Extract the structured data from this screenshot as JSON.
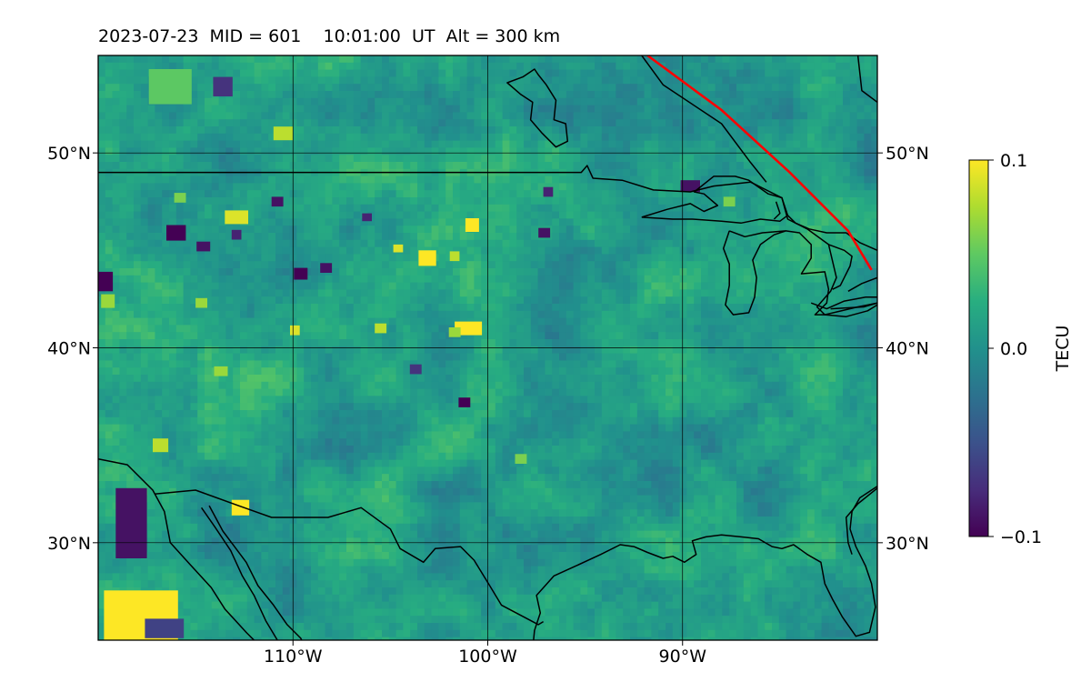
{
  "chart_data": {
    "type": "heatmap",
    "title": "2023-07-23  MID = 601    10:01:00  UT  Alt = 300 km",
    "lon_range": [
      -120,
      -80
    ],
    "lat_range": [
      25,
      55
    ],
    "x_ticks": [
      {
        "value": -110,
        "label": "110°W"
      },
      {
        "value": -100,
        "label": "100°W"
      },
      {
        "value": -90,
        "label": "90°W"
      }
    ],
    "y_ticks": [
      {
        "value": 30,
        "label": "30°N"
      },
      {
        "value": 40,
        "label": "40°N"
      },
      {
        "value": 50,
        "label": "50°N"
      }
    ],
    "grid": true,
    "colorbar": {
      "label": "TECU",
      "colormap": "viridis",
      "vmin": -0.1,
      "vmax": 0.1,
      "ticks": [
        {
          "value": 0.1,
          "label": "0.1"
        },
        {
          "value": 0.0,
          "label": "0.0"
        },
        {
          "value": -0.1,
          "label": "−0.1"
        }
      ]
    },
    "terminator_line": {
      "color": "#ff0000",
      "points": [
        [
          -91.8,
          55
        ],
        [
          -88,
          52.2
        ],
        [
          -84.5,
          49
        ],
        [
          -81.5,
          46
        ],
        [
          -80.3,
          44
        ]
      ]
    },
    "hotspots_positive": [
      {
        "lon": -117.8,
        "lat": 26.2,
        "w": 3.8,
        "h": 2.7,
        "v": 0.1
      },
      {
        "lon": -112.7,
        "lat": 31.8,
        "w": 0.9,
        "h": 0.8,
        "v": 0.1
      },
      {
        "lon": -103.1,
        "lat": 44.6,
        "w": 0.9,
        "h": 0.8,
        "v": 0.1
      },
      {
        "lon": -101.0,
        "lat": 41.0,
        "w": 1.4,
        "h": 0.7,
        "v": 0.1
      },
      {
        "lon": -100.8,
        "lat": 46.3,
        "w": 0.7,
        "h": 0.7,
        "v": 0.1
      },
      {
        "lon": -112.9,
        "lat": 46.7,
        "w": 1.2,
        "h": 0.7,
        "v": 0.09
      },
      {
        "lon": -110.5,
        "lat": 51.0,
        "w": 1.0,
        "h": 0.7,
        "v": 0.08
      },
      {
        "lon": -116.8,
        "lat": 35.0,
        "w": 0.8,
        "h": 0.7,
        "v": 0.08
      },
      {
        "lon": -109.9,
        "lat": 40.9,
        "w": 0.5,
        "h": 0.5,
        "v": 0.09
      },
      {
        "lon": -105.5,
        "lat": 41.0,
        "w": 0.6,
        "h": 0.5,
        "v": 0.08
      },
      {
        "lon": -104.6,
        "lat": 45.1,
        "w": 0.5,
        "h": 0.4,
        "v": 0.09
      },
      {
        "lon": -101.7,
        "lat": 44.7,
        "w": 0.5,
        "h": 0.5,
        "v": 0.08
      },
      {
        "lon": -114.7,
        "lat": 42.3,
        "w": 0.6,
        "h": 0.5,
        "v": 0.07
      },
      {
        "lon": -119.5,
        "lat": 42.4,
        "w": 0.7,
        "h": 0.7,
        "v": 0.07
      },
      {
        "lon": -113.7,
        "lat": 38.8,
        "w": 0.7,
        "h": 0.5,
        "v": 0.07
      },
      {
        "lon": -115.8,
        "lat": 47.7,
        "w": 0.6,
        "h": 0.5,
        "v": 0.06
      },
      {
        "lon": -87.6,
        "lat": 47.5,
        "w": 0.6,
        "h": 0.5,
        "v": 0.06
      },
      {
        "lon": -116.3,
        "lat": 53.4,
        "w": 2.2,
        "h": 1.8,
        "v": 0.05
      },
      {
        "lon": -98.3,
        "lat": 34.3,
        "w": 0.6,
        "h": 0.5,
        "v": 0.06
      },
      {
        "lon": -101.7,
        "lat": 40.8,
        "w": 0.6,
        "h": 0.5,
        "v": 0.07
      }
    ],
    "hotspots_negative": [
      {
        "lon": -119.7,
        "lat": 43.4,
        "w": 0.9,
        "h": 1.0,
        "v": -0.1
      },
      {
        "lon": -118.3,
        "lat": 31.0,
        "w": 1.6,
        "h": 3.6,
        "v": -0.09
      },
      {
        "lon": -116.0,
        "lat": 45.9,
        "w": 1.0,
        "h": 0.8,
        "v": -0.1
      },
      {
        "lon": -114.6,
        "lat": 45.2,
        "w": 0.7,
        "h": 0.5,
        "v": -0.09
      },
      {
        "lon": -109.6,
        "lat": 43.8,
        "w": 0.7,
        "h": 0.6,
        "v": -0.1
      },
      {
        "lon": -108.3,
        "lat": 44.1,
        "w": 0.6,
        "h": 0.5,
        "v": -0.09
      },
      {
        "lon": -110.8,
        "lat": 47.5,
        "w": 0.6,
        "h": 0.5,
        "v": -0.09
      },
      {
        "lon": -101.2,
        "lat": 37.2,
        "w": 0.6,
        "h": 0.5,
        "v": -0.1
      },
      {
        "lon": -89.6,
        "lat": 48.3,
        "w": 1.0,
        "h": 0.6,
        "v": -0.09
      },
      {
        "lon": -97.1,
        "lat": 45.9,
        "w": 0.6,
        "h": 0.5,
        "v": -0.09
      },
      {
        "lon": -96.9,
        "lat": 48.0,
        "w": 0.5,
        "h": 0.5,
        "v": -0.08
      },
      {
        "lon": -113.6,
        "lat": 53.4,
        "w": 1.0,
        "h": 1.0,
        "v": -0.07
      },
      {
        "lon": -112.9,
        "lat": 45.8,
        "w": 0.5,
        "h": 0.5,
        "v": -0.08
      },
      {
        "lon": -106.2,
        "lat": 46.7,
        "w": 0.5,
        "h": 0.4,
        "v": -0.08
      },
      {
        "lon": -103.7,
        "lat": 38.9,
        "w": 0.6,
        "h": 0.5,
        "v": -0.07
      },
      {
        "lon": -116.6,
        "lat": 25.6,
        "w": 2.0,
        "h": 1.0,
        "v": -0.06
      }
    ],
    "coastlines": [
      [
        [
          -120,
          34.3
        ],
        [
          -118.5,
          34.0
        ],
        [
          -117.2,
          32.7
        ],
        [
          -116.6,
          31.6
        ],
        [
          -116.3,
          30.0
        ],
        [
          -115.3,
          28.9
        ],
        [
          -114.2,
          27.7
        ],
        [
          -113.5,
          26.6
        ],
        [
          -112.4,
          25.4
        ],
        [
          -111.7,
          24.7
        ]
      ],
      [
        [
          -114.7,
          31.8
        ],
        [
          -114.0,
          30.8
        ],
        [
          -113.2,
          29.6
        ],
        [
          -112.6,
          28.3
        ],
        [
          -112.0,
          27.3
        ],
        [
          -111.4,
          26.0
        ],
        [
          -110.8,
          25.0
        ],
        [
          -110.5,
          24.2
        ]
      ],
      [
        [
          -114.3,
          31.9
        ],
        [
          -113.6,
          30.6
        ],
        [
          -112.4,
          29.0
        ],
        [
          -111.8,
          27.8
        ],
        [
          -111.0,
          26.8
        ],
        [
          -110.3,
          25.8
        ],
        [
          -109.6,
          25.1
        ],
        [
          -109.3,
          24.5
        ]
      ],
      [
        [
          -97.7,
          24.5
        ],
        [
          -97.6,
          25.5
        ],
        [
          -97.3,
          26.4
        ],
        [
          -97.5,
          27.3
        ],
        [
          -96.6,
          28.3
        ],
        [
          -95.5,
          28.8
        ],
        [
          -94.2,
          29.4
        ],
        [
          -93.2,
          29.9
        ],
        [
          -92.5,
          29.8
        ],
        [
          -91.8,
          29.5
        ],
        [
          -91.0,
          29.2
        ],
        [
          -90.5,
          29.3
        ],
        [
          -89.9,
          29.0
        ],
        [
          -89.3,
          29.4
        ],
        [
          -89.5,
          30.1
        ],
        [
          -88.8,
          30.3
        ],
        [
          -88.0,
          30.4
        ],
        [
          -87.0,
          30.3
        ],
        [
          -86.1,
          30.2
        ],
        [
          -85.4,
          29.8
        ],
        [
          -84.9,
          29.7
        ],
        [
          -84.3,
          29.9
        ],
        [
          -83.6,
          29.4
        ],
        [
          -82.9,
          29.0
        ],
        [
          -82.7,
          27.9
        ],
        [
          -82.3,
          27.1
        ],
        [
          -81.8,
          26.2
        ],
        [
          -81.1,
          25.2
        ],
        [
          -80.4,
          25.4
        ],
        [
          -80.1,
          26.7
        ],
        [
          -80.3,
          27.9
        ],
        [
          -80.6,
          28.8
        ],
        [
          -81.1,
          29.8
        ],
        [
          -81.4,
          30.7
        ],
        [
          -81.3,
          31.6
        ],
        [
          -80.9,
          32.3
        ],
        [
          -80.0,
          32.9
        ]
      ],
      [
        [
          -97.0,
          53.5
        ],
        [
          -96.5,
          52.7
        ],
        [
          -96.6,
          51.7
        ],
        [
          -96.0,
          51.5
        ],
        [
          -95.9,
          50.6
        ],
        [
          -96.5,
          50.3
        ],
        [
          -97.2,
          51.0
        ],
        [
          -97.8,
          51.7
        ],
        [
          -97.7,
          52.6
        ],
        [
          -98.3,
          53.0
        ],
        [
          -99.0,
          53.6
        ],
        [
          -98.2,
          53.9
        ],
        [
          -97.6,
          54.3
        ],
        [
          -97.4,
          54.0
        ],
        [
          -97.0,
          53.5
        ]
      ],
      [
        [
          -92.1,
          46.7
        ],
        [
          -90.8,
          47.1
        ],
        [
          -89.6,
          47.4
        ],
        [
          -88.9,
          47.0
        ],
        [
          -88.2,
          47.3
        ],
        [
          -88.9,
          47.9
        ],
        [
          -89.4,
          48.0
        ],
        [
          -88.4,
          48.8
        ],
        [
          -87.3,
          48.8
        ],
        [
          -86.6,
          48.6
        ],
        [
          -85.6,
          47.9
        ],
        [
          -84.9,
          47.7
        ],
        [
          -84.6,
          46.8
        ],
        [
          -85.0,
          46.5
        ],
        [
          -86.0,
          46.6
        ],
        [
          -87.0,
          46.4
        ],
        [
          -88.0,
          46.5
        ],
        [
          -89.5,
          46.6
        ],
        [
          -90.5,
          46.6
        ],
        [
          -92.1,
          46.7
        ]
      ],
      [
        [
          -87.6,
          46.0
        ],
        [
          -87.9,
          45.1
        ],
        [
          -87.6,
          44.3
        ],
        [
          -87.6,
          43.2
        ],
        [
          -87.8,
          42.2
        ],
        [
          -87.4,
          41.7
        ],
        [
          -86.6,
          41.8
        ],
        [
          -86.3,
          42.6
        ],
        [
          -86.2,
          43.6
        ],
        [
          -86.4,
          44.5
        ],
        [
          -86.0,
          45.3
        ],
        [
          -85.3,
          45.8
        ],
        [
          -84.7,
          46.0
        ],
        [
          -85.9,
          45.9
        ],
        [
          -86.8,
          45.7
        ],
        [
          -87.6,
          46.0
        ]
      ],
      [
        [
          -84.7,
          46.0
        ],
        [
          -84.0,
          45.9
        ],
        [
          -83.4,
          45.3
        ],
        [
          -83.4,
          44.6
        ],
        [
          -83.9,
          43.8
        ],
        [
          -82.7,
          43.9
        ],
        [
          -82.5,
          43.0
        ],
        [
          -82.6,
          42.3
        ],
        [
          -83.2,
          41.7
        ],
        [
          -82.7,
          41.7
        ],
        [
          -81.6,
          41.6
        ],
        [
          -80.5,
          41.9
        ],
        [
          -80.0,
          42.2
        ]
      ],
      [
        [
          -82.5,
          45.3
        ],
        [
          -81.7,
          45.0
        ],
        [
          -81.3,
          44.7
        ],
        [
          -81.4,
          44.2
        ],
        [
          -81.7,
          43.6
        ],
        [
          -81.9,
          43.2
        ],
        [
          -82.3,
          43.0
        ]
      ],
      [
        [
          -84.6,
          46.8
        ],
        [
          -84.2,
          46.4
        ],
        [
          -83.5,
          46.1
        ],
        [
          -82.6,
          45.9
        ],
        [
          -81.6,
          45.9
        ],
        [
          -80.9,
          45.4
        ],
        [
          -80.0,
          45.0
        ]
      ],
      [
        [
          -83.4,
          42.3
        ],
        [
          -82.6,
          42.0
        ],
        [
          -81.7,
          42.4
        ],
        [
          -80.6,
          42.6
        ],
        [
          -80.0,
          42.6
        ]
      ],
      [
        [
          -82.4,
          42.0
        ],
        [
          -80.7,
          42.1
        ],
        [
          -80.0,
          42.3
        ]
      ],
      [
        [
          -80.0,
          43.6
        ],
        [
          -80.8,
          43.3
        ],
        [
          -81.5,
          42.9
        ]
      ]
    ],
    "borders": [
      [
        [
          -120,
          49.0
        ],
        [
          -95.2,
          49.0
        ],
        [
          -94.9,
          49.35
        ],
        [
          -94.6,
          48.7
        ],
        [
          -93.1,
          48.6
        ],
        [
          -91.5,
          48.1
        ],
        [
          -89.6,
          48.0
        ],
        [
          -88.4,
          48.3
        ],
        [
          -86.5,
          48.5
        ],
        [
          -84.9,
          47.7
        ],
        [
          -84.6,
          46.6
        ],
        [
          -83.6,
          46.1
        ],
        [
          -82.5,
          45.3
        ],
        [
          -82.1,
          43.6
        ],
        [
          -82.4,
          42.9
        ],
        [
          -83.1,
          42.1
        ],
        [
          -82.7,
          41.7
        ],
        [
          -81.0,
          42.1
        ],
        [
          -80.0,
          42.3
        ]
      ],
      [
        [
          -117.1,
          32.5
        ],
        [
          -115.0,
          32.7
        ],
        [
          -112.8,
          31.9
        ],
        [
          -111.1,
          31.3
        ],
        [
          -108.2,
          31.3
        ],
        [
          -106.5,
          31.8
        ],
        [
          -105.0,
          30.7
        ],
        [
          -104.5,
          29.7
        ],
        [
          -103.3,
          29.0
        ],
        [
          -102.7,
          29.7
        ],
        [
          -101.4,
          29.8
        ],
        [
          -100.7,
          29.1
        ],
        [
          -99.9,
          27.8
        ],
        [
          -99.3,
          26.8
        ],
        [
          -97.4,
          25.8
        ],
        [
          -97.15,
          25.95
        ]
      ],
      [
        [
          -92.1,
          55.0
        ],
        [
          -91.0,
          53.5
        ],
        [
          -88.0,
          51.5
        ],
        [
          -86.5,
          49.5
        ],
        [
          -85.7,
          48.5
        ]
      ],
      [
        [
          -81.0,
          55.0
        ],
        [
          -80.8,
          53.2
        ],
        [
          -80.0,
          52.6
        ]
      ],
      [
        [
          -80.0,
          32.8
        ],
        [
          -81.0,
          32.0
        ],
        [
          -81.6,
          31.3
        ],
        [
          -81.5,
          30.0
        ],
        [
          -81.3,
          29.4
        ]
      ],
      [
        [
          -85.3,
          46.6
        ],
        [
          -85.0,
          46.9
        ],
        [
          -85.2,
          47.5
        ]
      ]
    ]
  }
}
